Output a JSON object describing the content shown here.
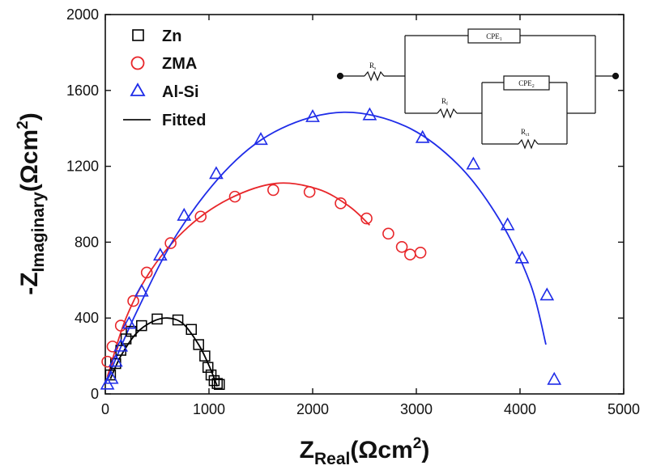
{
  "chart_data": {
    "type": "scatter",
    "title": "",
    "xlabel": {
      "main": "Z",
      "sub": "Real",
      "unit": "(Ωcm",
      "sup": "2",
      "close": ")"
    },
    "ylabel": {
      "prefix": "-Z",
      "sub": "Imaginary",
      "unit": "(Ωcm",
      "sup": "2",
      "close": ")"
    },
    "xlim": [
      0,
      5000
    ],
    "ylim": [
      0,
      2000
    ],
    "xticks": [
      0,
      1000,
      2000,
      3000,
      4000,
      5000
    ],
    "yticks": [
      0,
      400,
      800,
      1200,
      1600,
      2000
    ],
    "grid": false,
    "legend_position": "top-left",
    "series": [
      {
        "name": "Zn",
        "marker": "square",
        "color": "#000000",
        "points": [
          [
            50,
            100
          ],
          [
            100,
            160
          ],
          [
            150,
            230
          ],
          [
            200,
            290
          ],
          [
            250,
            330
          ],
          [
            350,
            360
          ],
          [
            500,
            395
          ],
          [
            700,
            390
          ],
          [
            830,
            340
          ],
          [
            900,
            260
          ],
          [
            960,
            200
          ],
          [
            990,
            140
          ],
          [
            1020,
            100
          ],
          [
            1050,
            70
          ],
          [
            1080,
            55
          ],
          [
            1100,
            50
          ]
        ]
      },
      {
        "name": "ZMA",
        "marker": "circle",
        "color": "#e8262a",
        "points": [
          [
            20,
            170
          ],
          [
            70,
            250
          ],
          [
            150,
            360
          ],
          [
            270,
            490
          ],
          [
            400,
            640
          ],
          [
            630,
            795
          ],
          [
            920,
            935
          ],
          [
            1250,
            1040
          ],
          [
            1620,
            1075
          ],
          [
            1970,
            1065
          ],
          [
            2270,
            1005
          ],
          [
            2520,
            925
          ],
          [
            2730,
            845
          ],
          [
            2860,
            775
          ],
          [
            2940,
            735
          ],
          [
            3040,
            745
          ]
        ]
      },
      {
        "name": "Al-Si",
        "marker": "triangle",
        "color": "#1f2ce8",
        "points": [
          [
            20,
            50
          ],
          [
            60,
            80
          ],
          [
            100,
            170
          ],
          [
            150,
            250
          ],
          [
            230,
            370
          ],
          [
            350,
            540
          ],
          [
            530,
            730
          ],
          [
            760,
            940
          ],
          [
            1070,
            1160
          ],
          [
            1500,
            1340
          ],
          [
            2000,
            1460
          ],
          [
            2550,
            1470
          ],
          [
            3060,
            1350
          ],
          [
            3550,
            1210
          ],
          [
            3880,
            890
          ],
          [
            4020,
            715
          ],
          [
            4260,
            520
          ],
          [
            4330,
            75
          ]
        ]
      },
      {
        "name": "Fitted",
        "marker": "line",
        "color": "#111111"
      }
    ],
    "fit_curves": [
      {
        "color": "#000000",
        "points": [
          [
            50,
            80
          ],
          [
            150,
            200
          ],
          [
            300,
            320
          ],
          [
            450,
            380
          ],
          [
            600,
            400
          ],
          [
            750,
            370
          ],
          [
            900,
            260
          ],
          [
            1000,
            150
          ],
          [
            1080,
            40
          ]
        ]
      },
      {
        "color": "#e8262a",
        "points": [
          [
            20,
            90
          ],
          [
            200,
            400
          ],
          [
            450,
            660
          ],
          [
            800,
            880
          ],
          [
            1200,
            1030
          ],
          [
            1650,
            1110
          ],
          [
            2050,
            1080
          ],
          [
            2350,
            990
          ],
          [
            2550,
            890
          ]
        ]
      },
      {
        "color": "#1f2ce8",
        "points": [
          [
            20,
            80
          ],
          [
            300,
            430
          ],
          [
            700,
            850
          ],
          [
            1200,
            1200
          ],
          [
            1700,
            1400
          ],
          [
            2300,
            1485
          ],
          [
            2900,
            1410
          ],
          [
            3400,
            1210
          ],
          [
            3800,
            920
          ],
          [
            4100,
            580
          ],
          [
            4250,
            260
          ]
        ]
      }
    ],
    "annotations": {
      "circuit": {
        "cpe1": "CPE",
        "cpe1_sub": "1",
        "rs": "R",
        "rs_sub": "s",
        "rf": "R",
        "rf_sub": "f",
        "cpe2": "CPE",
        "cpe2_sub": "2",
        "rct": "R",
        "rct_sub": "ct"
      }
    }
  }
}
